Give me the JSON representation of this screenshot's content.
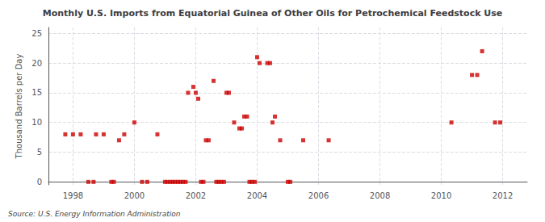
{
  "chart_data": {
    "type": "scatter",
    "title": "Monthly U.S. Imports from Equatorial Guinea of Other Oils for Petrochemical Feedstock Use",
    "ylabel": "Thousand Barrels per Day",
    "annotation": "Source: U.S. Energy Information Administration",
    "color": "#cc0000",
    "marker": "square",
    "grid": true,
    "xlim": [
      1997.2,
      2012.8
    ],
    "ylim": [
      -0.5,
      26
    ],
    "xticks": [
      1998,
      2000,
      2002,
      2004,
      2006,
      2008,
      2010,
      2012
    ],
    "yticks": [
      0,
      5,
      10,
      15,
      20,
      25
    ],
    "x": [
      1997.75,
      1998.0,
      1998.25,
      1998.75,
      1999.0,
      1999.5,
      1999.67,
      1999.25,
      1999.33,
      1998.5,
      1998.67,
      2000.0,
      2000.25,
      2000.42,
      2000.75,
      2001.0,
      2001.08,
      2001.17,
      2001.25,
      2001.33,
      2001.42,
      2001.5,
      2001.58,
      2001.67,
      2001.75,
      2001.92,
      2002.0,
      2002.08,
      2002.17,
      2002.25,
      2002.33,
      2002.42,
      2002.58,
      2002.67,
      2002.75,
      2002.83,
      2002.92,
      2003.0,
      2003.08,
      2003.25,
      2003.42,
      2003.5,
      2003.58,
      2003.67,
      2003.75,
      2003.83,
      2003.92,
      2004.0,
      2004.08,
      2004.33,
      2004.42,
      2004.5,
      2004.58,
      2004.75,
      2005.0,
      2005.08,
      2005.5,
      2006.33,
      2010.33,
      2011.0,
      2011.17,
      2011.33,
      2011.75,
      2011.92
    ],
    "values": [
      8,
      8,
      8,
      8,
      8,
      7,
      8,
      0,
      0,
      0,
      0,
      10,
      0,
      0,
      8,
      0,
      0,
      0,
      0,
      0,
      0,
      0,
      0,
      0,
      15,
      16,
      15,
      14,
      0,
      0,
      7,
      7,
      17,
      0,
      0,
      0,
      0,
      15,
      15,
      10,
      9,
      9,
      11,
      11,
      0,
      0,
      0,
      21,
      20,
      20,
      20,
      10,
      11,
      7,
      0,
      0,
      7,
      7,
      10,
      18,
      18,
      22,
      10,
      10
    ]
  }
}
